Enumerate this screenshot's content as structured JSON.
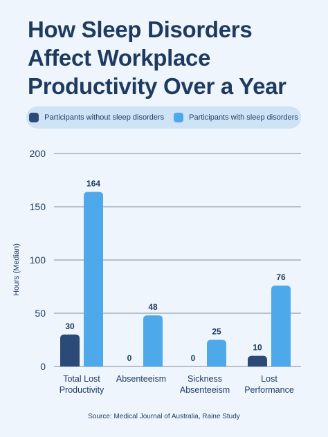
{
  "title_lines": [
    "How Sleep Disorders",
    "Affect Workplace",
    "Productivity Over a Year"
  ],
  "source": "Source: Medical Journal of Australia, Raine Study",
  "colors": {
    "without": "#2c4a78",
    "with": "#4da9ea",
    "grid": "#7f8b99",
    "text": "#1e3a5f"
  },
  "chart_data": {
    "type": "bar",
    "title": "How Sleep Disorders Affect Workplace Productivity Over a Year",
    "ylabel": "Hours (Median)",
    "xlabel": "",
    "ylim": [
      0,
      200
    ],
    "yticks": [
      0,
      50,
      100,
      150,
      200
    ],
    "grid": true,
    "legend_position": "top",
    "categories": [
      [
        "Total Lost",
        "Productivity"
      ],
      [
        "Absenteeism"
      ],
      [
        "Sickness",
        "Absenteeism"
      ],
      [
        "Lost",
        "Performance"
      ]
    ],
    "series": [
      {
        "name": "Participants without sleep disorders",
        "color_key": "without",
        "values": [
          30,
          0,
          0,
          10
        ]
      },
      {
        "name": "Participants with sleep disorders",
        "color_key": "with",
        "values": [
          164,
          48,
          25,
          76
        ]
      }
    ]
  }
}
